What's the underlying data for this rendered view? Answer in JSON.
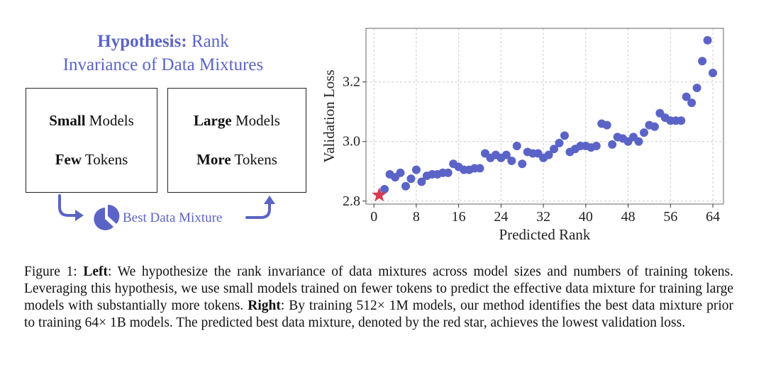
{
  "hypothesis": {
    "title_bold": "Hypothesis:",
    "title_rest": "Rank",
    "title_line2": "Invariance of Data Mixtures"
  },
  "left_box": {
    "bold1": "Small",
    "rest1": "Models",
    "bold2": "Few",
    "rest2": "Tokens"
  },
  "right_box": {
    "bold1": "Large",
    "rest1": "Models",
    "bold2": "More",
    "rest2": "Tokens"
  },
  "flow": {
    "label": "Best Data Mixture",
    "icons": [
      "arrow-down-right-icon",
      "pie-chart-icon",
      "arrow-right-up-icon"
    ]
  },
  "colors": {
    "accent": "#5b64c6",
    "points": "#5b64c6",
    "star": "#d63a52"
  },
  "chart_data": {
    "type": "scatter",
    "xlabel": "Predicted Rank",
    "ylabel": "Validation Loss",
    "xlim": [
      -1.5,
      66
    ],
    "ylim": [
      2.79,
      3.38
    ],
    "xticks": [
      0,
      8,
      16,
      24,
      32,
      40,
      48,
      56,
      64
    ],
    "yticks": [
      2.8,
      3.0,
      3.2
    ],
    "ytick_labels": [
      "2.8",
      "3.0",
      "3.2"
    ],
    "grid": true,
    "x": [
      2,
      3,
      4,
      5,
      6,
      7,
      8,
      9,
      10,
      11,
      12,
      13,
      14,
      15,
      16,
      17,
      18,
      19,
      20,
      21,
      22,
      23,
      24,
      25,
      26,
      27,
      28,
      29,
      30,
      31,
      32,
      33,
      34,
      35,
      36,
      37,
      38,
      39,
      40,
      41,
      42,
      43,
      44,
      45,
      46,
      47,
      48,
      49,
      50,
      51,
      52,
      53,
      54,
      55,
      56,
      57,
      58,
      59,
      60,
      61,
      62,
      63,
      64
    ],
    "y": [
      2.84,
      2.89,
      2.88,
      2.895,
      2.85,
      2.875,
      2.905,
      2.865,
      2.885,
      2.89,
      2.89,
      2.895,
      2.895,
      2.925,
      2.915,
      2.905,
      2.905,
      2.91,
      2.91,
      2.96,
      2.945,
      2.955,
      2.945,
      2.955,
      2.935,
      2.985,
      2.925,
      2.965,
      2.96,
      2.96,
      2.945,
      2.955,
      2.975,
      2.995,
      3.02,
      2.965,
      2.975,
      2.985,
      2.985,
      2.98,
      2.985,
      3.06,
      3.055,
      2.99,
      3.015,
      3.01,
      3.0,
      3.015,
      3.0,
      3.03,
      3.055,
      3.05,
      3.095,
      3.08,
      3.07,
      3.07,
      3.07,
      3.15,
      3.13,
      3.18,
      3.27,
      3.34,
      3.23
    ],
    "highlight": {
      "x": 1,
      "y": 2.82,
      "marker": "star"
    }
  },
  "caption": {
    "p1": "Figure 1: ",
    "b1": "Left",
    "p2": ": We hypothesize the rank invariance of data mixtures across model sizes and numbers of training tokens. Leveraging this hypothesis, we use small models trained on fewer tokens to predict the effective data mixture for training large models with substantially more tokens. ",
    "b2": "Right",
    "p3": ": By training 512× 1M models, our method identifies the best data mixture prior to training 64× 1B models. The predicted best data mixture, denoted by the red star, achieves the lowest validation loss."
  }
}
